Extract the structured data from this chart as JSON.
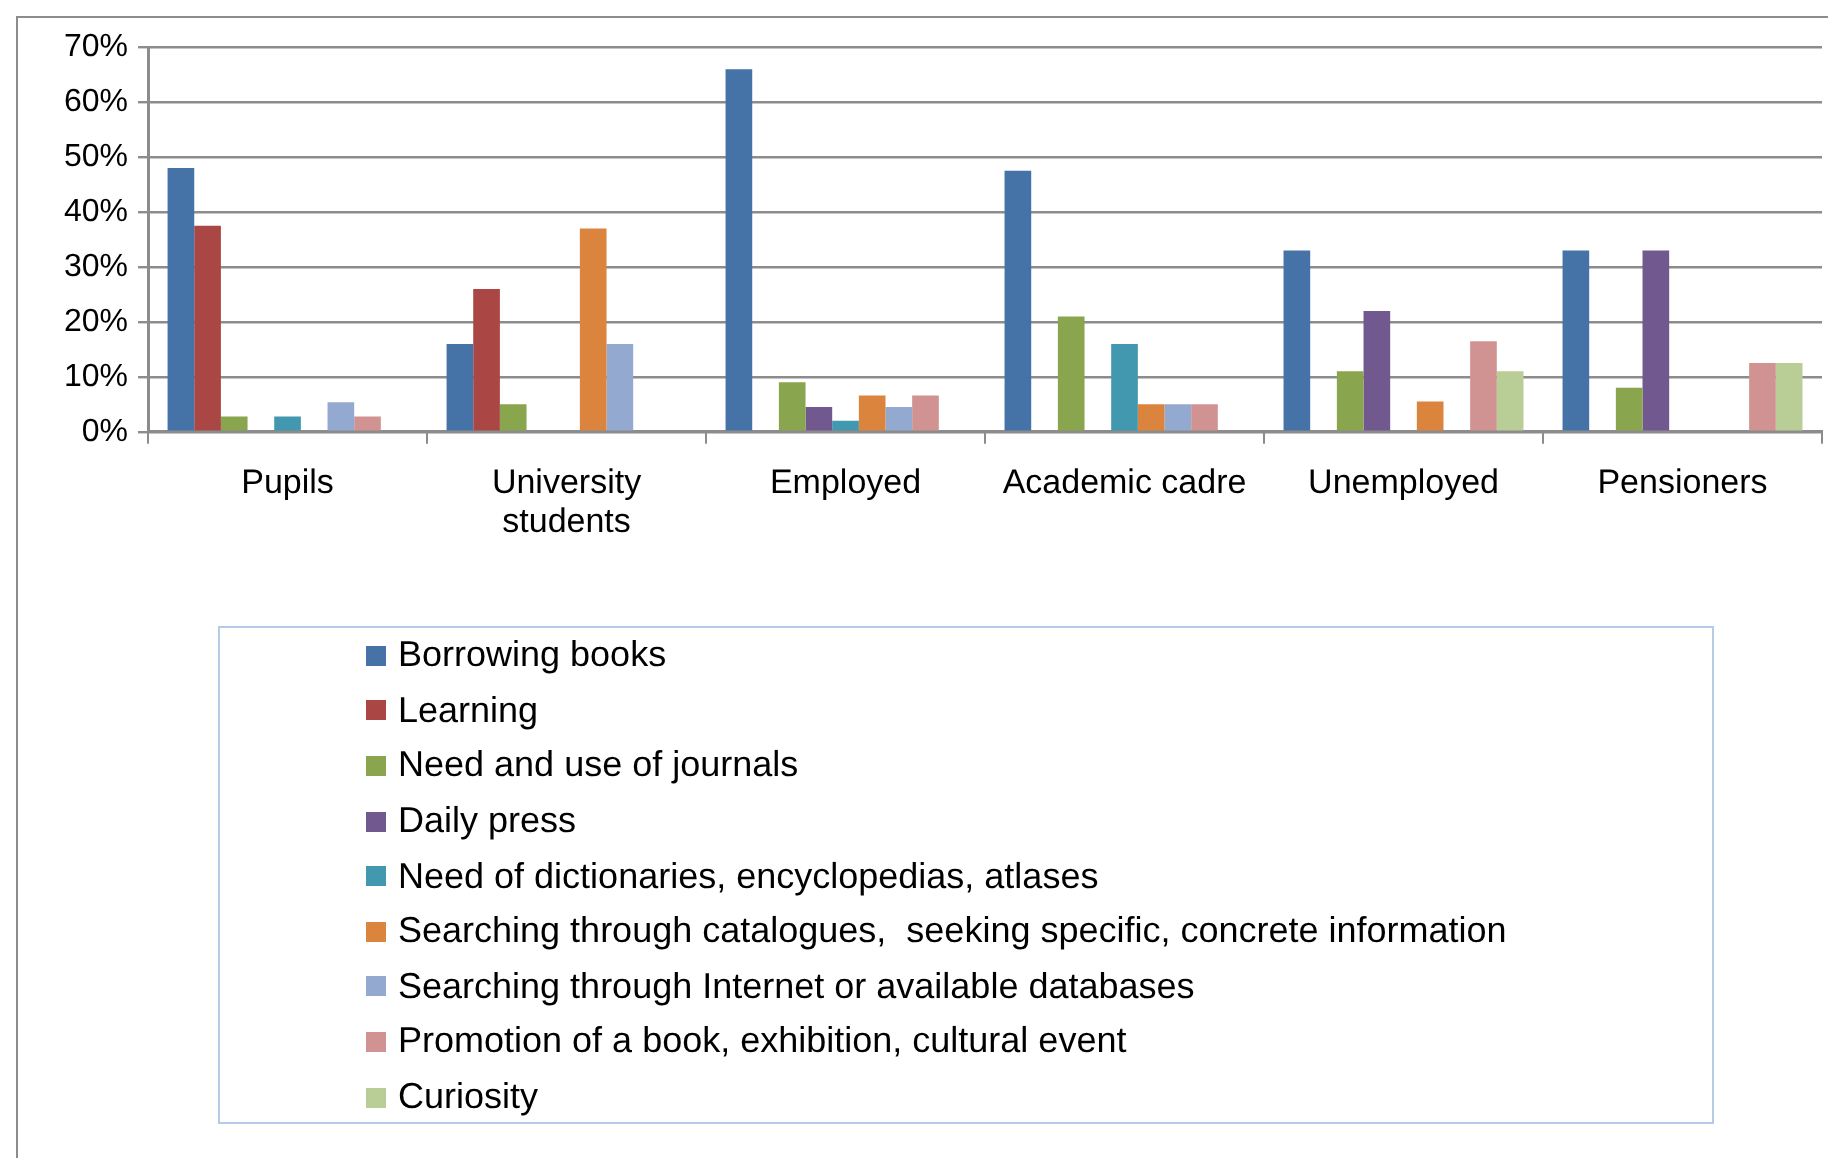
{
  "chart_data": {
    "type": "bar",
    "categories": [
      "Pupils",
      "University students",
      "Employed",
      "Academic cadre",
      "Unemployed",
      "Pensioners"
    ],
    "series": [
      {
        "name": "Borrowing books",
        "color": "#4572a7",
        "values": [
          48,
          16,
          66,
          47.5,
          33,
          33
        ]
      },
      {
        "name": "Learning",
        "color": "#aa4643",
        "values": [
          37.5,
          26,
          null,
          null,
          null,
          null
        ]
      },
      {
        "name": "Need and use of journals",
        "color": "#89a54e",
        "values": [
          2.8,
          5,
          9,
          21,
          11,
          8
        ]
      },
      {
        "name": "Daily press",
        "color": "#71588f",
        "values": [
          null,
          null,
          4.5,
          null,
          22,
          33
        ]
      },
      {
        "name": "Need of dictionaries, encyclopedias, atlases",
        "color": "#4198af",
        "values": [
          2.8,
          null,
          2,
          16,
          null,
          null
        ]
      },
      {
        "name": "Searching through catalogues,  seeking specific, concrete information",
        "color": "#db843d",
        "values": [
          null,
          37,
          6.6,
          5,
          5.5,
          null
        ]
      },
      {
        "name": "Searching through Internet or available databases",
        "color": "#93a9cf",
        "values": [
          5.4,
          16,
          4.5,
          5,
          null,
          null
        ]
      },
      {
        "name": "Promotion of a book, exhibition, cultural event",
        "color": "#d19392",
        "values": [
          2.8,
          null,
          6.6,
          5,
          16.5,
          12.5
        ]
      },
      {
        "name": "Curiosity",
        "color": "#b9cd96",
        "values": [
          null,
          null,
          null,
          null,
          11,
          12.5
        ]
      }
    ],
    "ylim": [
      0,
      70
    ],
    "yticks": [
      {
        "value": 0,
        "label": "0%"
      },
      {
        "value": 10,
        "label": "10%"
      },
      {
        "value": 20,
        "label": "20%"
      },
      {
        "value": 30,
        "label": "30%"
      },
      {
        "value": 40,
        "label": "40%"
      },
      {
        "value": 50,
        "label": "50%"
      },
      {
        "value": 60,
        "label": "60%"
      },
      {
        "value": 70,
        "label": "70%"
      }
    ],
    "grid": "y",
    "legend": "bottom"
  }
}
